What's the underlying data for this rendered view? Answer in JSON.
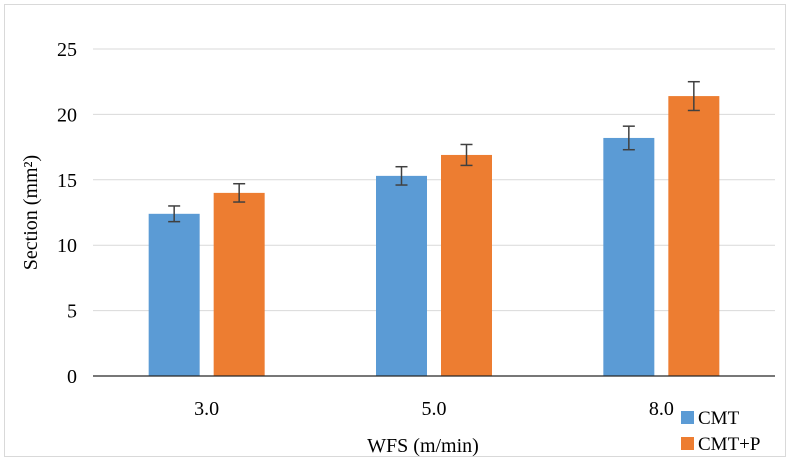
{
  "chart_data": {
    "type": "bar",
    "xlabel": "WFS (m/min)",
    "ylabel": "Section (mm²)",
    "categories": [
      "3.0",
      "5.0",
      "8.0"
    ],
    "ylim": [
      0,
      25
    ],
    "yticks": [
      0,
      5,
      10,
      15,
      20,
      25
    ],
    "grid": true,
    "legend_position": "bottom-right",
    "series": [
      {
        "name": "CMT",
        "color": "#5b9bd5",
        "values": [
          12.4,
          15.3,
          18.2
        ],
        "errors": [
          0.6,
          0.7,
          0.9
        ]
      },
      {
        "name": "CMT+P",
        "color": "#ed7d31",
        "values": [
          14.0,
          16.9,
          21.4
        ],
        "errors": [
          0.7,
          0.8,
          1.1
        ]
      }
    ]
  }
}
